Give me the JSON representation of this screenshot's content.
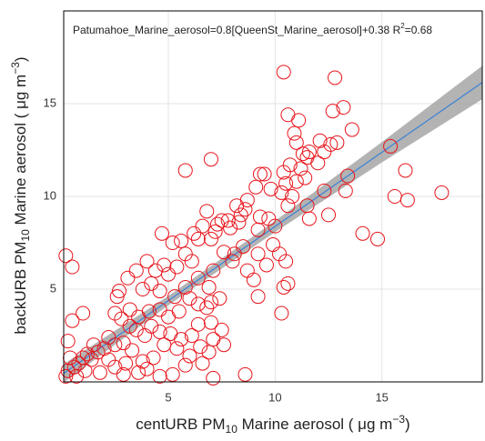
{
  "chart_data": {
    "type": "scatter",
    "annotation": [
      "Patumahoe_Marine_aerosol=0.8[QueenSt_Marine_aerosol]+0.38 R",
      "2",
      "=0.68"
    ],
    "x_label": [
      "centURB PM",
      "10",
      " Marine aerosol ( μg m",
      "−3",
      ")"
    ],
    "y_label": [
      "backURB PM",
      "10",
      " Marine aerosol ( μg m",
      "−3",
      ")"
    ],
    "xlim": [
      0.1,
      19.7
    ],
    "ylim": [
      0,
      20
    ],
    "xticks": [
      5,
      10,
      15
    ],
    "yticks": [
      5,
      10,
      15
    ],
    "grid": true,
    "color": "#e8141b",
    "x": [
      10.4,
      12.8,
      10.6,
      11.1,
      13.2,
      12.7,
      13.6,
      10.9,
      12.1,
      12.6,
      12.9,
      11.0,
      11.3,
      11.6,
      11.5,
      12.3,
      15.4,
      16.1,
      11.4,
      11.2,
      10.7,
      10.4,
      12.0,
      13.4,
      9.3,
      9.5,
      5.8,
      7.0,
      17.8,
      15.6,
      16.2,
      11.0,
      10.5,
      10.3,
      10.8,
      10.6,
      11.5,
      11.6,
      12.3,
      14.1,
      14.8,
      9.8,
      9.1,
      8.2,
      8.6,
      8.7,
      8.4,
      7.8,
      7.5,
      7.3,
      7.9,
      8.3,
      9.3,
      9.7,
      10.0,
      9.2,
      6.8,
      6.2,
      5.2,
      4.7,
      5.6,
      6.4,
      6.6,
      7.0,
      7.2,
      7.6,
      8.1,
      8.5,
      8.0,
      8.7,
      9.0,
      9.2,
      9.6,
      9.9,
      10.2,
      10.5,
      10.6,
      10.4,
      9.2,
      10.3,
      12.5,
      13.3,
      6.1,
      5.8,
      5.4,
      5.0,
      4.8,
      4.4,
      4.0,
      3.5,
      3.1,
      3.8,
      4.2,
      4.6,
      5.3,
      5.8,
      6.4,
      6.9,
      7.1,
      7.4,
      7.0,
      6.8,
      6.4,
      6.0,
      5.5,
      5.0,
      4.6,
      4.1,
      3.6,
      3.2,
      2.8,
      2.5,
      2.7,
      2.6,
      3.2,
      3.5,
      3.9,
      4.2,
      4.6,
      5.1,
      5.6,
      6.1,
      6.4,
      7.0,
      7.5,
      7.1,
      7.6,
      6.9,
      6.5,
      6.0,
      5.4,
      4.8,
      4.3,
      3.8,
      3.3,
      2.9,
      2.5,
      2.2,
      2.0,
      1.7,
      1.5,
      1.2,
      1.4,
      1.0,
      0.8,
      0.6,
      0.3,
      0.2,
      0.4,
      0.3,
      0.5,
      0.2,
      0.5,
      1.0,
      2.5,
      2.9,
      3.6,
      4.0,
      4.6,
      5.2,
      7.1,
      8.6,
      5.8,
      6.6,
      3.0,
      2.2,
      1.8,
      1.1,
      0.7
    ],
    "values": [
      16.7,
      16.4,
      14.4,
      14.1,
      14.8,
      14.6,
      13.6,
      13.4,
      13.0,
      12.8,
      12.9,
      12.9,
      12.3,
      12.4,
      12.1,
      12.4,
      12.7,
      11.4,
      11.0,
      11.5,
      11.7,
      11.3,
      11.8,
      11.1,
      11.2,
      11.2,
      11.4,
      12.0,
      10.2,
      10.0,
      9.8,
      10.8,
      10.7,
      10.2,
      10.0,
      9.5,
      9.5,
      8.8,
      10.3,
      8.0,
      7.7,
      10.4,
      10.5,
      9.5,
      9.3,
      9.8,
      9.0,
      8.7,
      8.7,
      8.5,
      8.3,
      8.6,
      8.9,
      8.8,
      8.4,
      8.2,
      9.2,
      8.0,
      7.5,
      8.0,
      7.6,
      7.7,
      8.4,
      7.7,
      8.1,
      7.0,
      6.9,
      7.3,
      6.5,
      6.0,
      5.5,
      6.9,
      6.3,
      7.4,
      6.9,
      6.5,
      5.3,
      5.1,
      4.6,
      3.7,
      9.0,
      10.3,
      6.5,
      6.9,
      6.2,
      5.8,
      6.3,
      6.0,
      6.5,
      6.0,
      5.6,
      5.0,
      5.3,
      4.9,
      4.6,
      5.1,
      5.6,
      5.1,
      6.0,
      4.5,
      4.3,
      4.0,
      4.2,
      4.5,
      3.8,
      3.5,
      3.9,
      3.8,
      3.5,
      3.9,
      3.4,
      3.7,
      4.9,
      4.6,
      3.0,
      2.8,
      2.5,
      3.0,
      2.7,
      2.6,
      2.3,
      2.5,
      3.1,
      3.2,
      2.8,
      2.3,
      2.0,
      1.6,
      1.9,
      1.4,
      1.8,
      2.0,
      1.3,
      1.1,
      1.7,
      2.1,
      2.0,
      2.4,
      1.8,
      1.6,
      2.0,
      1.5,
      1.2,
      1.3,
      1.0,
      0.8,
      0.6,
      0.3,
      1.3,
      2.2,
      3.3,
      6.8,
      6.2,
      3.7,
      0.8,
      0.4,
      0.5,
      0.7,
      0.3,
      0.4,
      0.2,
      0.4,
      0.9,
      1.0,
      1.0,
      1.2,
      0.5,
      0.6,
      0.3
    ],
    "fit": {
      "color": "#3b82d6",
      "band_color": "#9a9a9a",
      "x": [
        0.1,
        5,
        10,
        15,
        19.7
      ],
      "values": [
        0.46,
        4.38,
        8.38,
        12.38,
        16.14
      ],
      "lower": [
        -0.04,
        4.13,
        8.08,
        11.83,
        15.24
      ],
      "upper": [
        0.96,
        4.63,
        8.68,
        12.93,
        17.04
      ]
    }
  }
}
